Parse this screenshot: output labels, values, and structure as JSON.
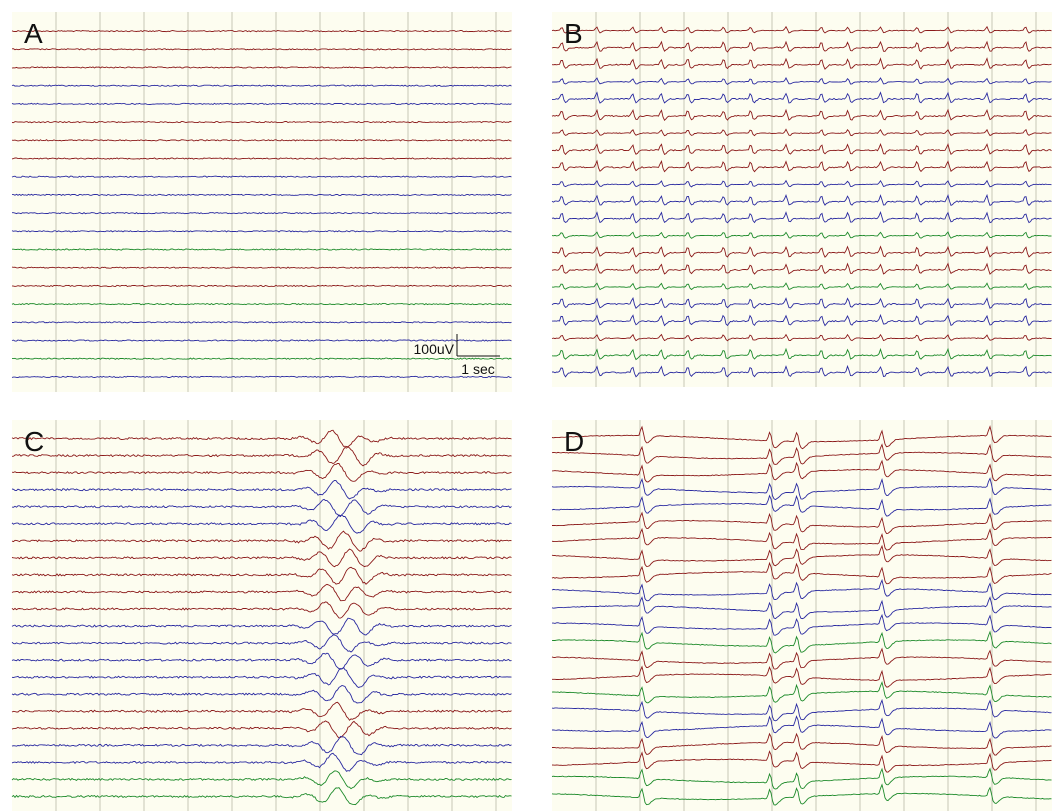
{
  "panels": [
    {
      "label": "A"
    },
    {
      "label": "B"
    },
    {
      "label": "C"
    },
    {
      "label": "D"
    }
  ],
  "scale_bar": {
    "amplitude": "100uV",
    "time": "1 sec"
  }
}
